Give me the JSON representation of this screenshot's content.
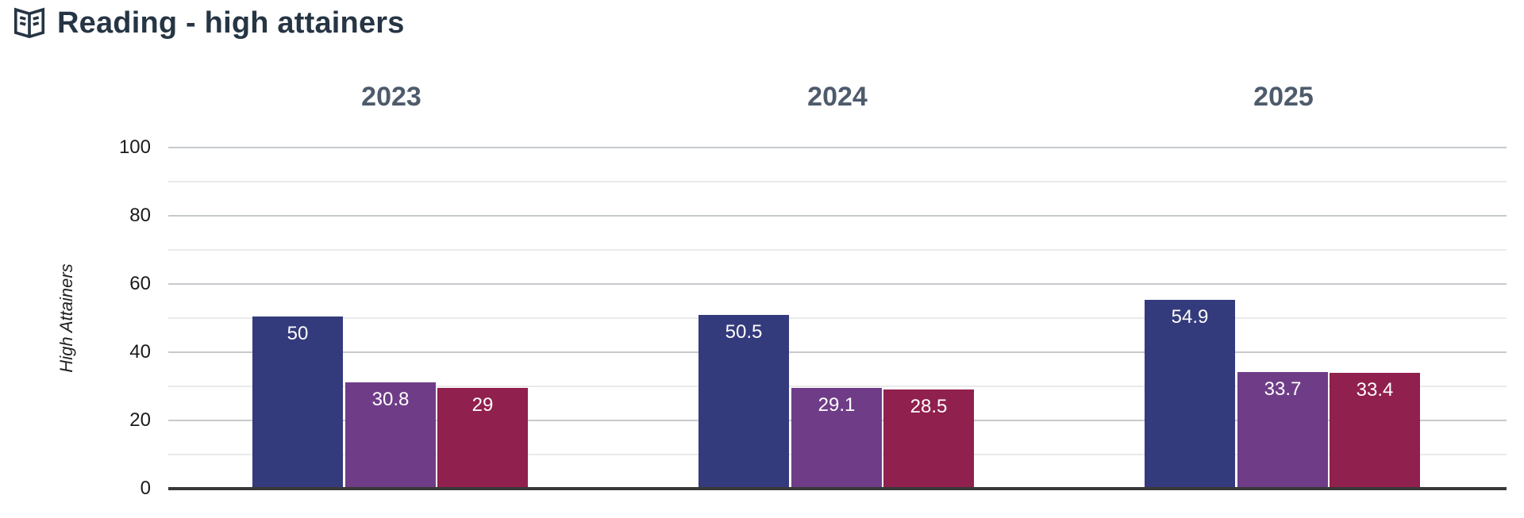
{
  "header": {
    "title": "Reading - high attainers",
    "icon": "open-book"
  },
  "chart_data": {
    "type": "bar",
    "title": "Reading - high attainers",
    "categories": [
      "2023",
      "2024",
      "2025"
    ],
    "series": [
      {
        "name": "blue-series",
        "color": "#343b7c",
        "values": [
          50,
          50.5,
          54.9
        ]
      },
      {
        "name": "purple-series",
        "color": "#6f3d88",
        "values": [
          30.8,
          29.1,
          33.7
        ]
      },
      {
        "name": "crimson-series",
        "color": "#90204d",
        "values": [
          29,
          28.5,
          33.4
        ]
      }
    ],
    "xlabel": "",
    "ylabel": "High Attainers",
    "ylim": [
      0,
      100
    ],
    "yticks": [
      0,
      20,
      40,
      60,
      80,
      100
    ],
    "minor_grid_step": 10,
    "grid": "horizontal",
    "legend": false,
    "value_labels_shown": true,
    "colors": {
      "title": "#263544",
      "year_header": "#4d5b6b",
      "axis_text": "#1b1b1b",
      "major_grid": "#c7cacd",
      "minor_grid": "#e9eaeb",
      "axis_line": "#383838",
      "bar_label": "#ffffff"
    }
  }
}
